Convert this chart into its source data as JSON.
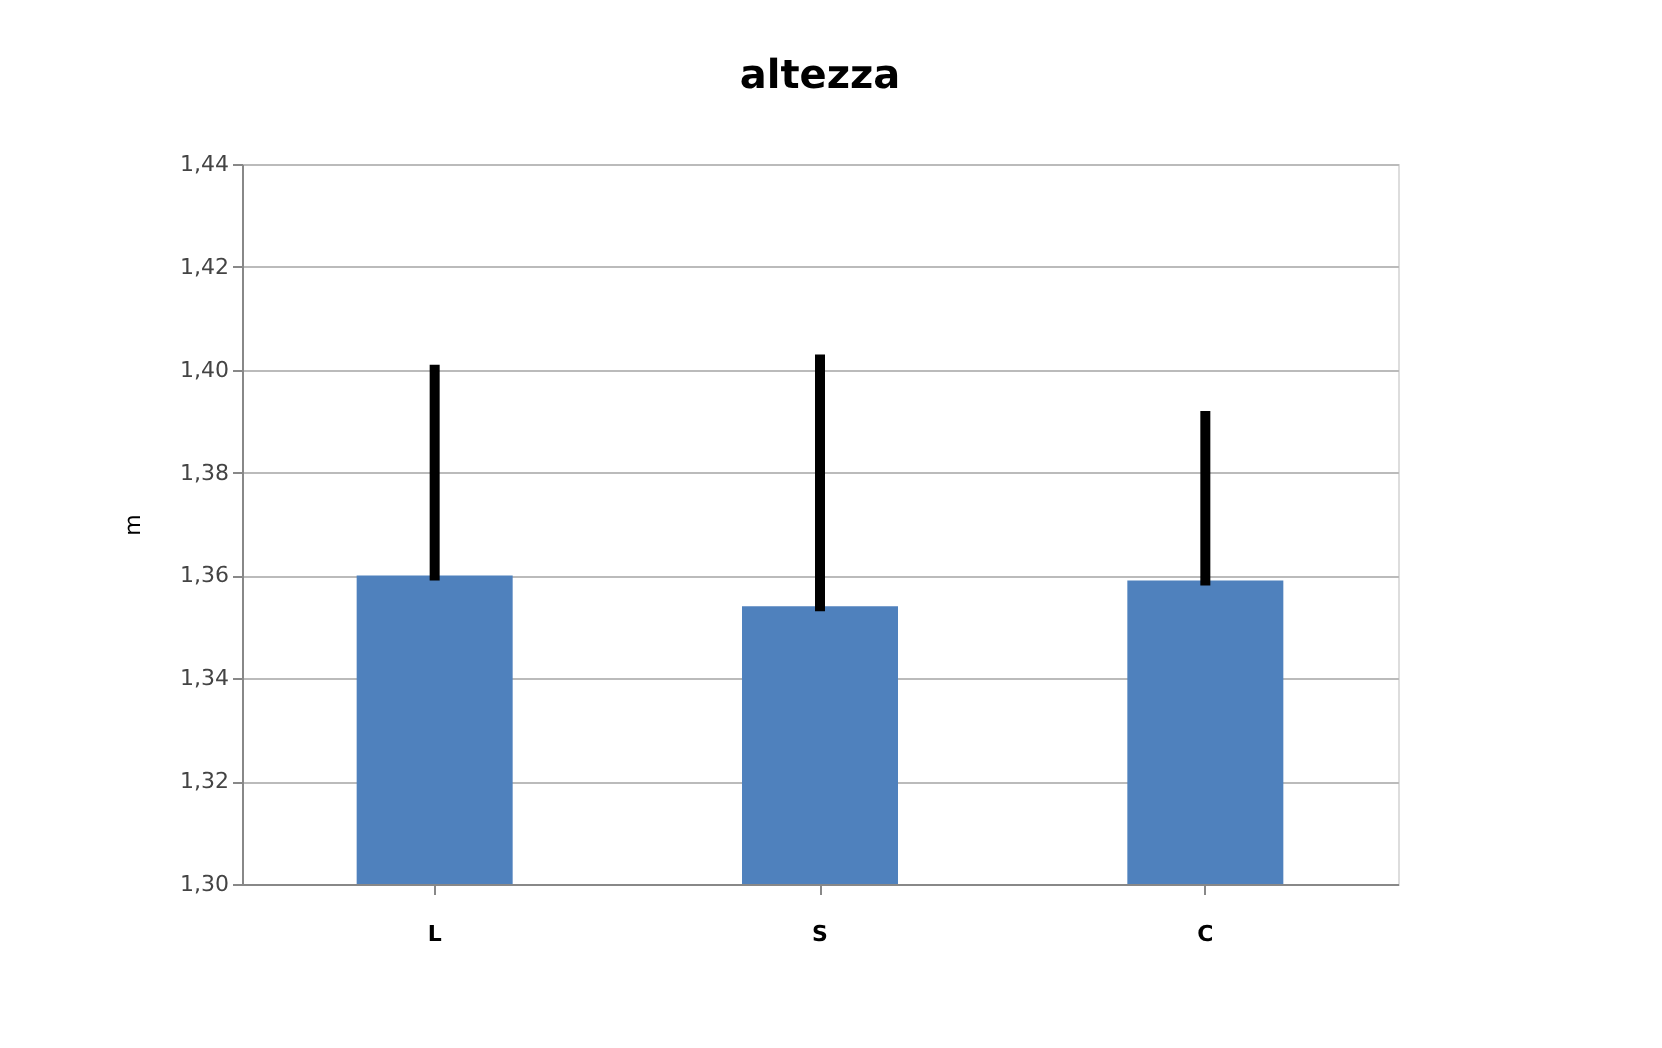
{
  "chart_data": {
    "type": "bar",
    "title": "altezza",
    "ylabel": "m",
    "categories": [
      "L",
      "S",
      "C"
    ],
    "values": [
      1.36,
      1.354,
      1.359
    ],
    "errors": [
      [
        1.36,
        1.4
      ],
      [
        1.354,
        1.402
      ],
      [
        1.359,
        1.391
      ]
    ],
    "color": "#4f81bd",
    "ylim": [
      1.3,
      1.44
    ],
    "yticks": [
      {
        "value": 1.3,
        "label": "1,30"
      },
      {
        "value": 1.32,
        "label": "1,32"
      },
      {
        "value": 1.34,
        "label": "1,34"
      },
      {
        "value": 1.36,
        "label": "1,36"
      },
      {
        "value": 1.38,
        "label": "1,38"
      },
      {
        "value": 1.4,
        "label": "1,40"
      },
      {
        "value": 1.42,
        "label": "1,42"
      },
      {
        "value": 1.44,
        "label": "1,44"
      }
    ],
    "grid": "y"
  }
}
